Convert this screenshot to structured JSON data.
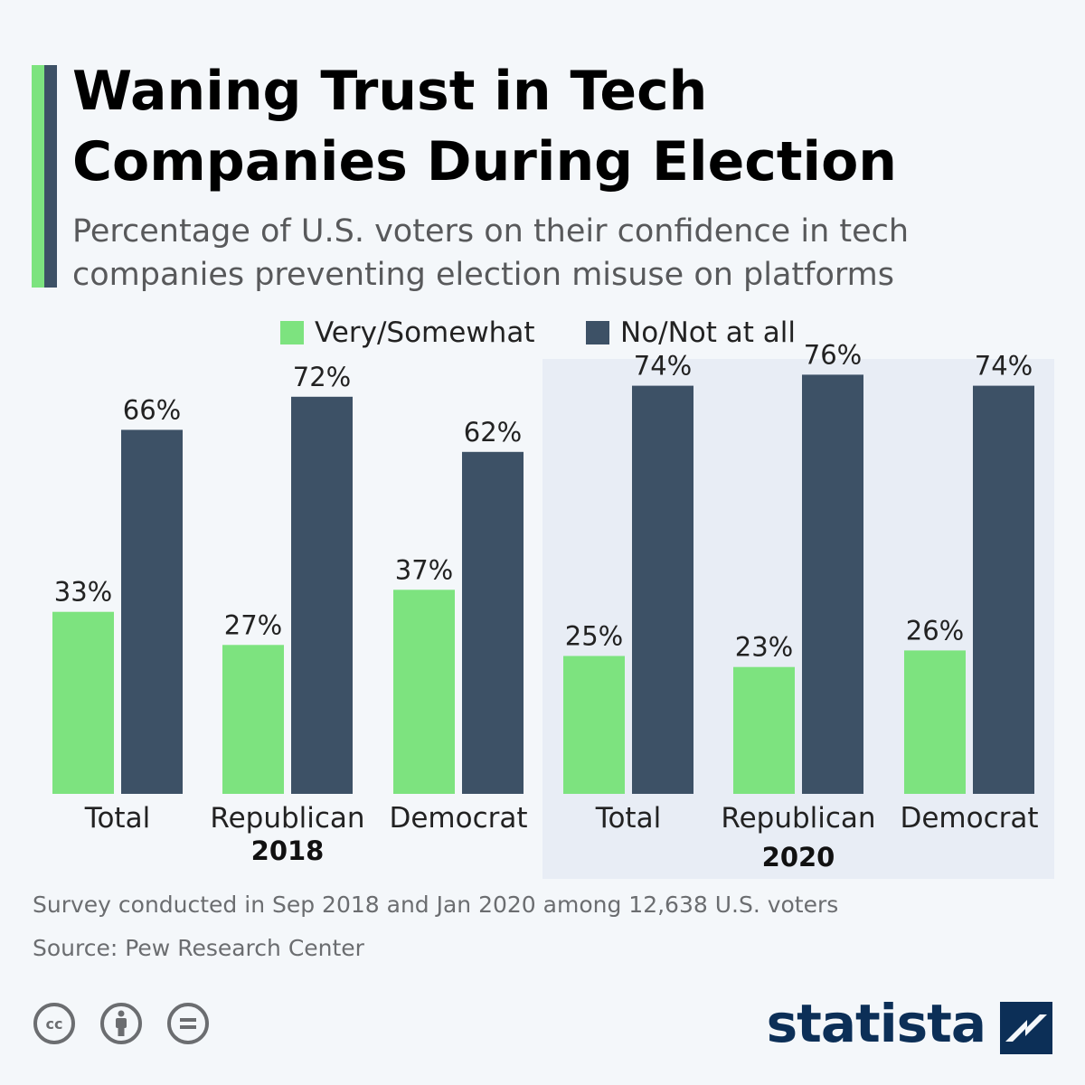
{
  "title": "Waning Trust in Tech Companies During Election",
  "subtitle": "Percentage of U.S. voters on their confidence in tech companies preventing election misuse on platforms",
  "legend": [
    {
      "label": "Very/Somewhat",
      "color": "#7de37f"
    },
    {
      "label": "No/Not at all",
      "color": "#3d5166"
    }
  ],
  "colors": {
    "very_somewhat": "#7de37f",
    "not_at_all": "#3d5166",
    "highlight_bg": "#e8edf5",
    "background": "#f4f7fa"
  },
  "chart_data": {
    "type": "bar",
    "categories": [
      "Total",
      "Republican",
      "Democrat",
      "Total",
      "Republican",
      "Democrat"
    ],
    "groups": [
      {
        "label": "2018",
        "categories": [
          "Total",
          "Republican",
          "Democrat"
        ],
        "highlighted": false
      },
      {
        "label": "2020",
        "categories": [
          "Total",
          "Republican",
          "Democrat"
        ],
        "highlighted": true
      }
    ],
    "series": [
      {
        "name": "Very/Somewhat",
        "values": [
          33,
          27,
          37,
          25,
          23,
          26
        ]
      },
      {
        "name": "No/Not at all",
        "values": [
          66,
          72,
          62,
          74,
          76,
          74
        ]
      }
    ],
    "value_labels": {
      "Very/Somewhat": [
        "33%",
        "27%",
        "37%",
        "25%",
        "23%",
        "26%"
      ],
      "No/Not at all": [
        "66%",
        "72%",
        "62%",
        "74%",
        "76%",
        "74%"
      ]
    },
    "ylim": [
      0,
      80
    ],
    "grid": false,
    "legend_position": "top-center"
  },
  "footer": {
    "note": "Survey conducted in Sep 2018 and Jan 2020 among 12,638 U.S. voters",
    "source": "Source: Pew Research Center"
  },
  "license_icons": [
    "creative-commons-icon",
    "attribution-icon",
    "no-derivatives-icon"
  ],
  "brand": {
    "name": "statista",
    "icon": "statista-logo-icon"
  }
}
